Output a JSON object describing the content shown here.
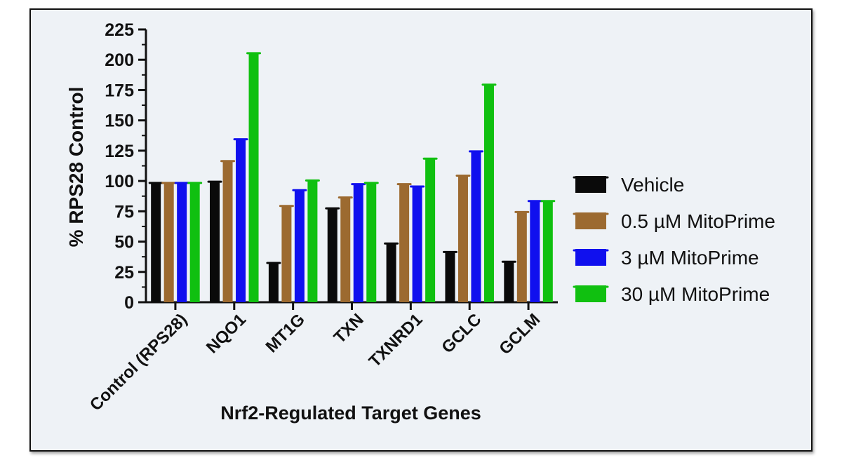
{
  "chart_data": {
    "type": "bar",
    "title": "",
    "xlabel": "Nrf2-Regulated Target Genes",
    "ylabel": "% RPS28 Control",
    "ylim": [
      0,
      225
    ],
    "yticks": [
      "0",
      "25",
      "50",
      "75",
      "100",
      "125",
      "150",
      "175",
      "200",
      "225"
    ],
    "categories": [
      "Control (RPS28)",
      "NQO1",
      "MT1G",
      "TXN",
      "TXNRD1",
      "GCLC",
      "GCLM"
    ],
    "series": [
      {
        "name": "Vehicle",
        "color": "#0a0a0a",
        "values": [
          99,
          100,
          33,
          78,
          49,
          42,
          34
        ]
      },
      {
        "name": "0.5 µM MitoPrime",
        "color": "#9c6a30",
        "values": [
          99,
          117,
          80,
          87,
          98,
          105,
          75
        ]
      },
      {
        "name": "3 µM MitoPrime",
        "color": "#1010ee",
        "values": [
          99,
          135,
          93,
          98,
          96,
          125,
          84
        ]
      },
      {
        "name": "30 µM MitoPrime",
        "color": "#10c010",
        "values": [
          99,
          206,
          101,
          99,
          119,
          180,
          84
        ]
      }
    ],
    "legend_position": "right",
    "grid": false
  }
}
